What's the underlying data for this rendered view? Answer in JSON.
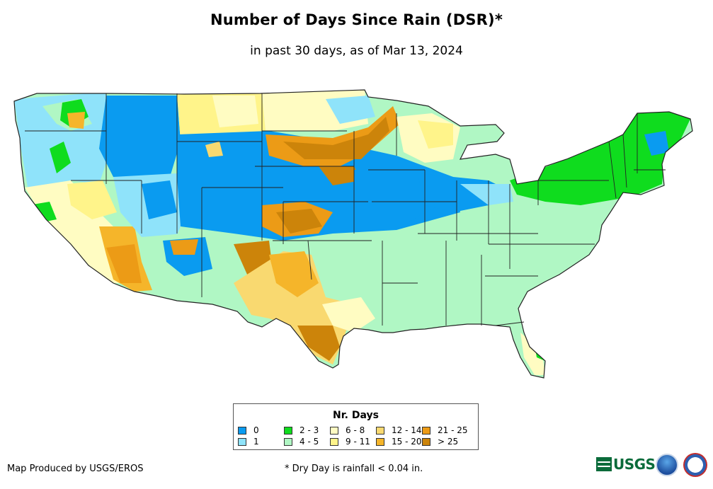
{
  "title": "Number of Days Since Rain (DSR)*",
  "subtitle": "in past 30 days, as of Mar 13, 2024",
  "legend": {
    "title": "Nr. Days",
    "items": [
      {
        "label": "0",
        "color": "#0a9bf0"
      },
      {
        "label": "1",
        "color": "#8fe3fa"
      },
      {
        "label": "2 - 3",
        "color": "#0fdc1e"
      },
      {
        "label": "4 - 5",
        "color": "#b0f7c4"
      },
      {
        "label": "6 - 8",
        "color": "#fffcc2"
      },
      {
        "label": "9 - 11",
        "color": "#fff48a"
      },
      {
        "label": "12 - 14",
        "color": "#f9d970"
      },
      {
        "label": "15 - 20",
        "color": "#f5b52a"
      },
      {
        "label": "21 - 25",
        "color": "#ec9b16"
      },
      {
        "label": "> 25",
        "color": "#cc840a"
      }
    ]
  },
  "footer": {
    "credit": "Map Produced by USGS/EROS",
    "footnote": "* Dry Day is rainfall < 0.04 in."
  },
  "logos": {
    "usgs_text": "USGS",
    "usgs_icon": "usgs-logo-icon",
    "noaa_icon": "noaa-logo-icon",
    "nws_icon": "nws-logo-icon"
  }
}
